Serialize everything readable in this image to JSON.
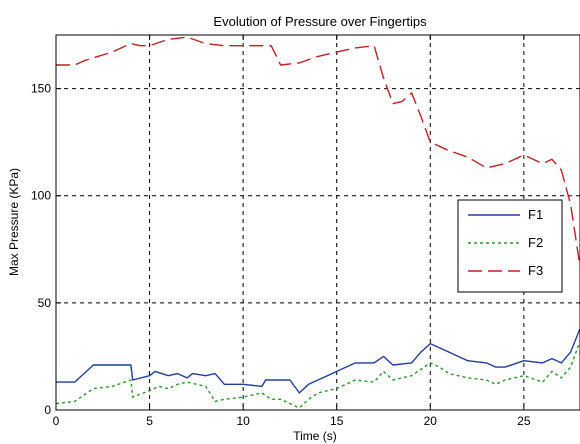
{
  "chart_data": {
    "type": "line",
    "title": "Evolution of Pressure over Fingertips",
    "xlabel": "Time (s)",
    "ylabel": "Max Pressure (KPa)",
    "xlim": [
      0,
      28
    ],
    "ylim": [
      0,
      175
    ],
    "xticks": [
      0,
      5,
      10,
      15,
      20,
      25
    ],
    "yticks": [
      0,
      50,
      100,
      150
    ],
    "grid": true,
    "legend_position": "right",
    "series": [
      {
        "name": "F1",
        "color": "#1f3f9f",
        "style": "solid",
        "x": [
          0,
          1,
          2,
          2.2,
          4,
          4.1,
          5,
          5.3,
          6,
          6.5,
          7,
          7.3,
          8,
          8.5,
          9,
          10,
          11,
          11.2,
          12,
          12.5,
          13,
          13.5,
          14,
          14.5,
          15,
          16,
          17,
          17.5,
          18,
          19,
          19.5,
          20,
          20.5,
          21,
          22,
          23,
          23.5,
          24,
          25,
          26,
          26.5,
          27,
          27.5,
          28
        ],
        "y": [
          13,
          13,
          21,
          21,
          21,
          14,
          16,
          18,
          16,
          17,
          15,
          17,
          16,
          17,
          12,
          12,
          11,
          14,
          14,
          14,
          8,
          12,
          14,
          16,
          18,
          22,
          22,
          25,
          21,
          22,
          27,
          31,
          29,
          27,
          23,
          22,
          20,
          20,
          23,
          22,
          24,
          22,
          27,
          38
        ]
      },
      {
        "name": "F2",
        "color": "#2a9a2a",
        "style": "dotted",
        "x": [
          0,
          1,
          2,
          3,
          4,
          4.1,
          5,
          5.5,
          6,
          6.5,
          7,
          8,
          8.5,
          9,
          10,
          11,
          11.5,
          12,
          12.5,
          13,
          13.5,
          14,
          15,
          16,
          17,
          17.5,
          18,
          19,
          19.5,
          20,
          20.5,
          21,
          22,
          23,
          23.5,
          24,
          25,
          26,
          26.5,
          27,
          27.5,
          28
        ],
        "y": [
          3,
          4,
          10,
          11,
          14,
          6,
          9,
          11,
          10,
          12,
          13,
          11,
          4,
          5,
          6,
          8,
          5,
          5,
          3,
          1,
          5,
          8,
          10,
          14,
          13,
          18,
          14,
          16,
          19,
          22,
          20,
          17,
          15,
          14,
          12,
          14,
          16,
          13,
          18,
          15,
          20,
          32
        ]
      },
      {
        "name": "F3",
        "color": "#c42020",
        "style": "dashed",
        "x": [
          0,
          1,
          1.5,
          3,
          4,
          4.5,
          5,
          6,
          7,
          8,
          9,
          10,
          11,
          11.5,
          12,
          13,
          14,
          15,
          16,
          17,
          17.5,
          18,
          18.5,
          19,
          19.5,
          20,
          21,
          22,
          23,
          24,
          25,
          26,
          26.5,
          27,
          27.5,
          28
        ],
        "y": [
          161,
          161,
          163,
          167,
          171,
          170,
          170,
          173,
          174,
          171,
          170,
          170,
          170,
          170,
          161,
          162,
          165,
          167,
          169,
          170,
          155,
          143,
          144,
          148,
          137,
          125,
          121,
          118,
          113,
          115,
          119,
          115,
          117,
          112,
          96,
          67
        ]
      }
    ]
  }
}
